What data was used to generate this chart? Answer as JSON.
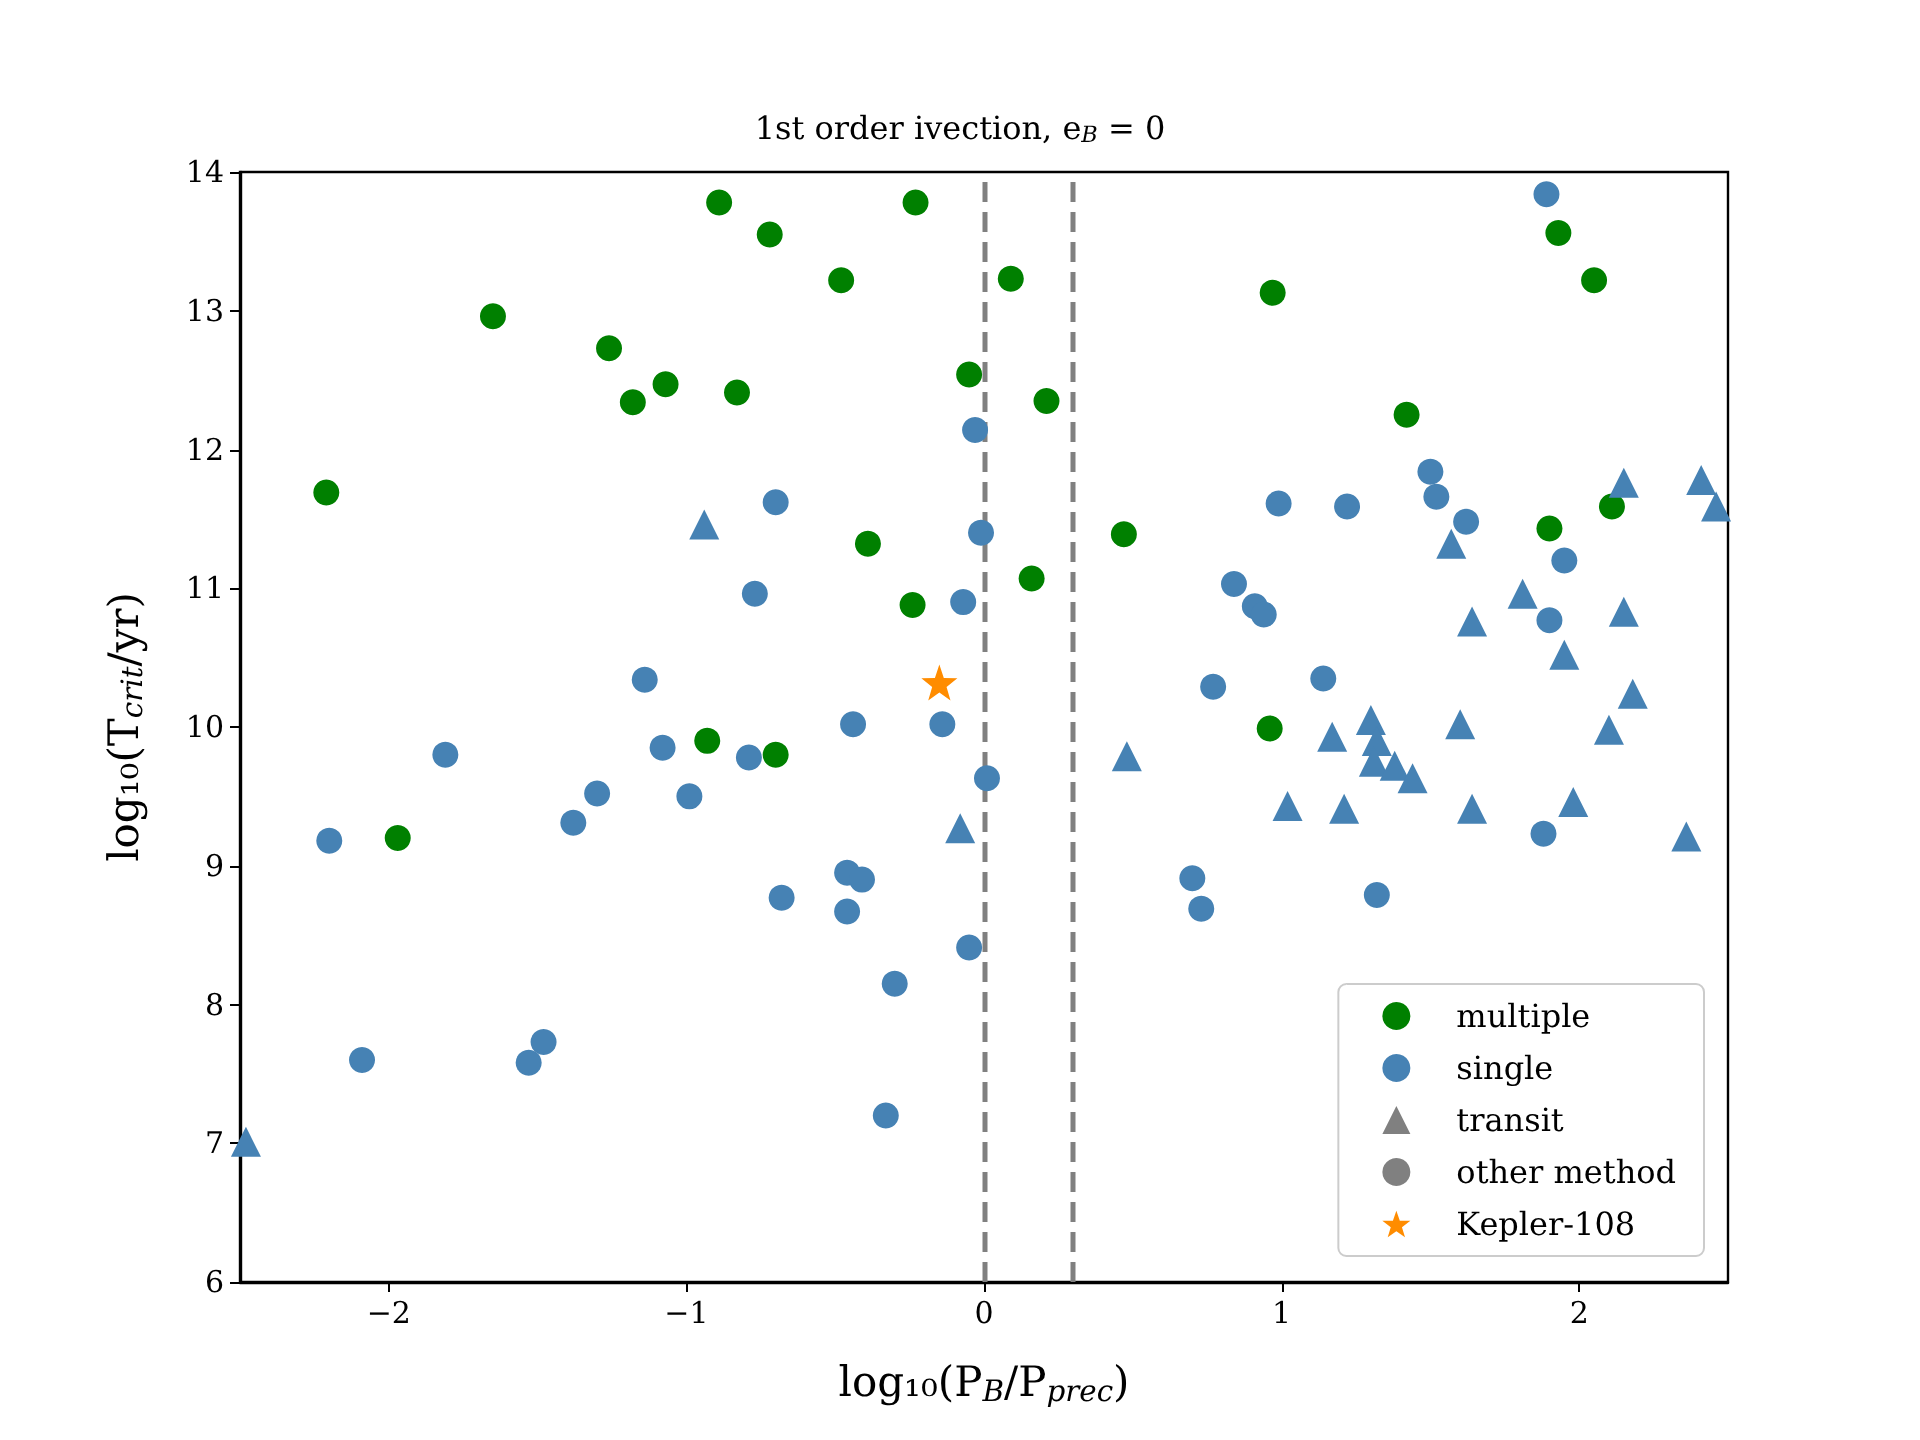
{
  "chart_data": {
    "type": "scatter",
    "title": "1st order ivection, e$_{B}$ = 0",
    "xlabel": "log₁₀(P$_{B}$/P$_{prec}$)",
    "ylabel": "log₁₀(T$_{crit}$/yr)",
    "xlim": [
      -2.5,
      2.5
    ],
    "xticks": [
      {
        "value": -2,
        "label": "−2"
      },
      {
        "value": -1,
        "label": "−1"
      },
      0,
      1,
      2
    ],
    "ylim": [
      6,
      14
    ],
    "yticks": [
      6,
      7,
      8,
      9,
      10,
      11,
      12,
      13,
      14
    ],
    "grid": false,
    "legend": "bottom right",
    "ref_lines": [
      {
        "axis": "x",
        "value": 0,
        "color": "#808080",
        "line_style": "dashed"
      },
      {
        "axis": "x",
        "value": 0.3,
        "color": "#808080",
        "line_style": "dashed"
      }
    ],
    "series": [
      {
        "name": "multiple",
        "color": "#008000",
        "marker": "circle",
        "x": [
          -0.89,
          -0.23,
          -0.72,
          -0.48,
          0.09,
          -1.65,
          -1.26,
          -1.07,
          -1.18,
          -0.83,
          -0.05,
          0.21,
          -2.21,
          -0.39,
          0.47,
          0.16,
          -0.24,
          -0.93,
          -0.7,
          -1.97,
          1.93,
          2.05,
          0.97,
          1.42,
          2.11,
          1.9,
          0.96
        ],
        "values": [
          13.78,
          13.78,
          13.55,
          13.22,
          13.23,
          12.96,
          12.73,
          12.47,
          12.34,
          12.41,
          12.54,
          12.35,
          11.69,
          11.32,
          11.39,
          11.07,
          10.88,
          9.9,
          9.8,
          9.2,
          13.56,
          13.22,
          13.13,
          12.25,
          11.59,
          11.43,
          9.99
        ]
      },
      {
        "name": "single",
        "color": "#4682b4",
        "marker": "circle",
        "x": [
          -0.03,
          -0.7,
          -0.01,
          -0.77,
          -0.07,
          -1.14,
          -0.44,
          -0.14,
          -1.81,
          -2.2,
          -1.3,
          -1.38,
          -1.08,
          -0.99,
          -0.79,
          -2.09,
          -1.48,
          -1.53,
          0.01,
          -0.46,
          -0.41,
          -0.68,
          -0.46,
          -0.05,
          -0.3,
          -0.33,
          0.7,
          0.73,
          1.89,
          1.5,
          1.52,
          0.99,
          1.22,
          1.62,
          1.95,
          0.84,
          0.91,
          0.94,
          1.9,
          0.77,
          1.14,
          1.88,
          1.32
        ],
        "values": [
          12.14,
          11.62,
          11.4,
          10.96,
          10.9,
          10.34,
          10.02,
          10.02,
          9.8,
          9.18,
          9.52,
          9.31,
          9.85,
          9.5,
          9.78,
          7.6,
          7.73,
          7.58,
          9.63,
          8.95,
          8.9,
          8.77,
          8.67,
          8.41,
          8.15,
          7.2,
          8.91,
          8.69,
          13.84,
          11.84,
          11.66,
          11.61,
          11.59,
          11.48,
          11.2,
          11.03,
          10.87,
          10.81,
          10.77,
          10.29,
          10.35,
          9.23,
          8.79
        ]
      },
      {
        "color": "#4682b4",
        "marker": "triangle",
        "x": [
          -0.94,
          -2.48,
          -0.08,
          0.48,
          1.57,
          2.15,
          2.41,
          2.46,
          1.81,
          2.15,
          1.64,
          1.95,
          2.18,
          1.3,
          1.17,
          1.6,
          2.1,
          1.32,
          1.31,
          1.38,
          1.44,
          1.02,
          1.21,
          1.64,
          1.98,
          2.36
        ],
        "values": [
          11.46,
          7.01,
          9.27,
          9.79,
          11.32,
          11.76,
          11.78,
          11.59,
          10.96,
          10.83,
          10.76,
          10.52,
          10.24,
          10.05,
          9.93,
          10.02,
          9.98,
          9.9,
          9.75,
          9.72,
          9.63,
          9.43,
          9.41,
          9.41,
          9.46,
          9.21
        ]
      },
      {
        "name": "transit",
        "color": "#808080",
        "marker": "triangle"
      },
      {
        "name": "other method",
        "color": "#808080",
        "marker": "circle"
      },
      {
        "name": "Kepler-108",
        "color": "#ff8c00",
        "marker": "star",
        "x": [
          -0.15
        ],
        "values": [
          10.32
        ]
      }
    ]
  }
}
